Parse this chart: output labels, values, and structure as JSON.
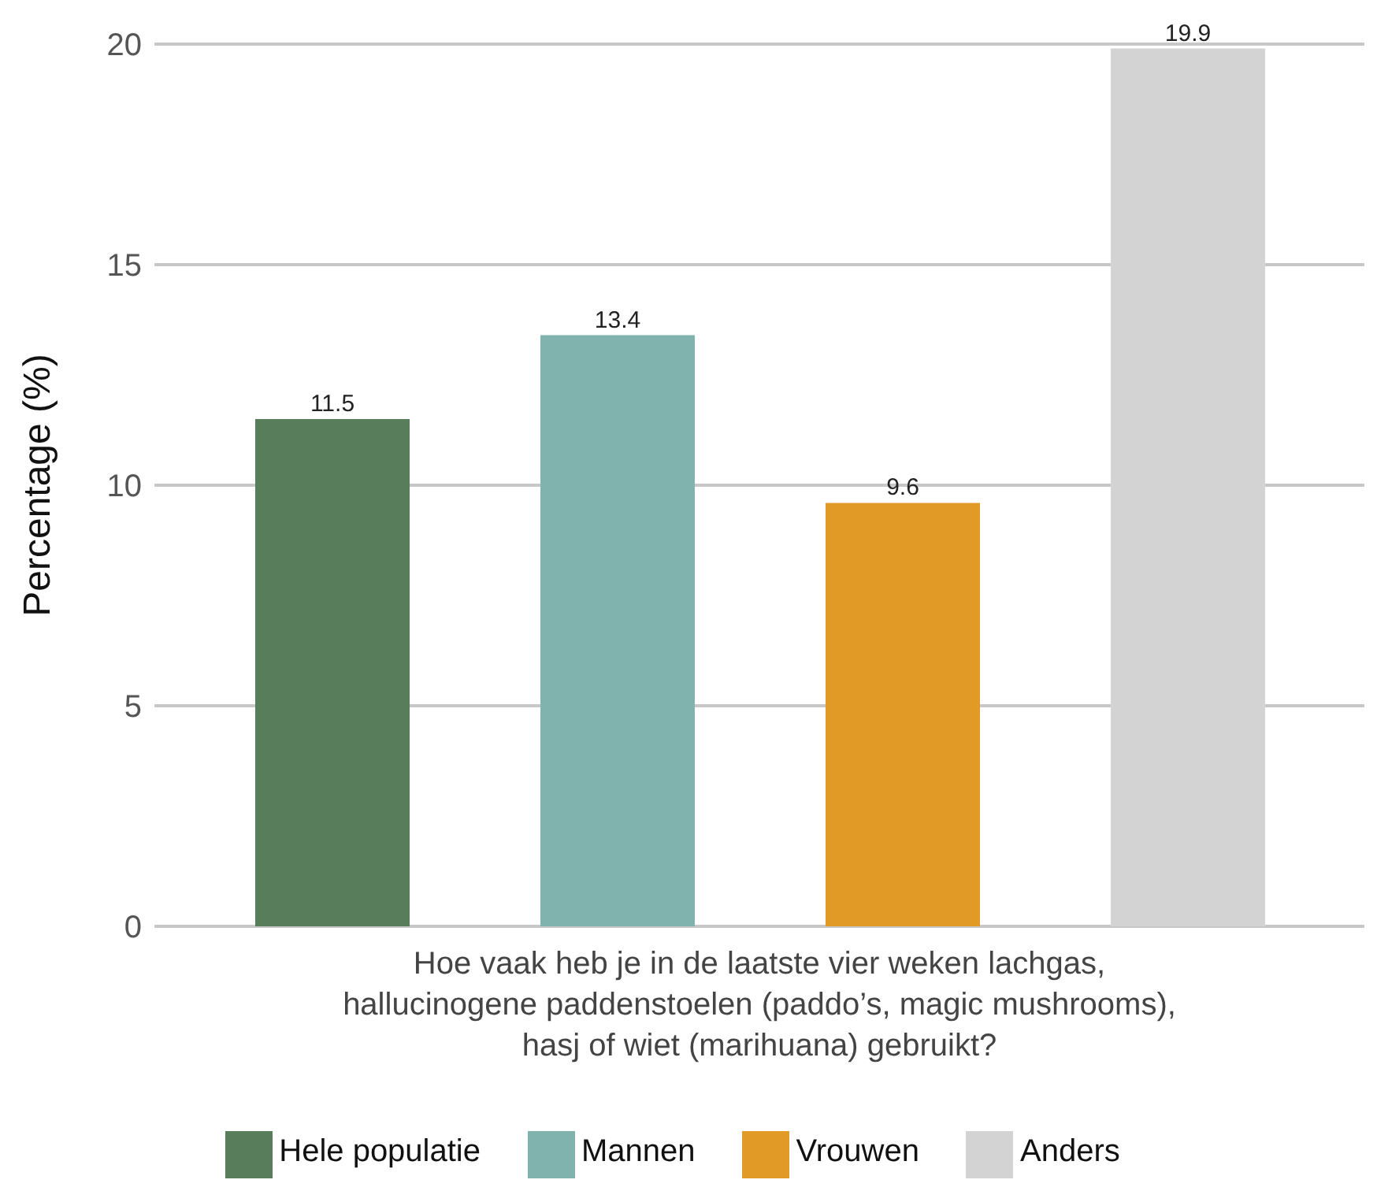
{
  "chart_data": {
    "type": "bar",
    "categories": [
      null
    ],
    "series": [
      {
        "name": "Hele populatie",
        "color": "#587d5a",
        "values": [
          11.5
        ]
      },
      {
        "name": "Mannen",
        "color": "#80b3ae",
        "values": [
          13.4
        ]
      },
      {
        "name": "Vrouwen",
        "color": "#e09a25",
        "values": [
          9.6
        ]
      },
      {
        "name": "Anders",
        "color": "#d3d3d3",
        "values": [
          19.9
        ]
      }
    ],
    "xlabel": "Hoe vaak heb je in de laatste vier weken lachgas,\nhallucinogene paddenstoelen (paddo’s, magic mushrooms),\nhasj of wiet (marihuana) gebruikt?",
    "ylabel": "Percentage (%)",
    "ylim": [
      0,
      20
    ],
    "yticks": [
      0,
      5,
      10,
      15,
      20
    ],
    "grid": "y",
    "data_labels": true,
    "legend": "bottom"
  }
}
